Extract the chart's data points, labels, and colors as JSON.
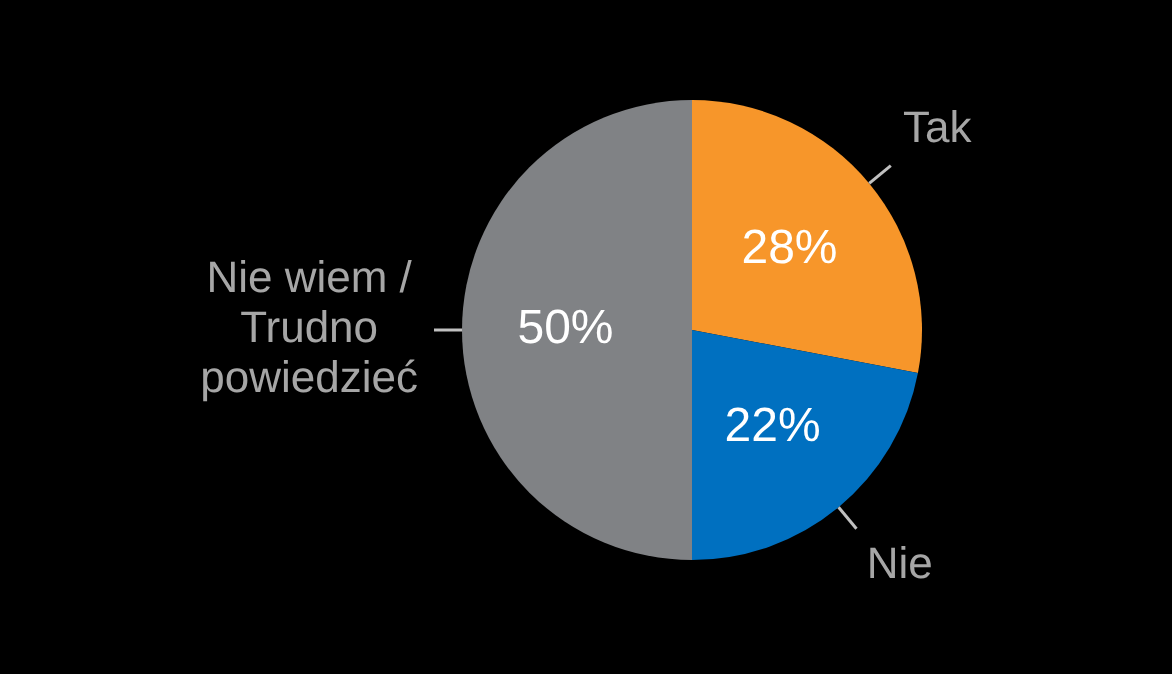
{
  "chart_data": {
    "type": "pie",
    "categories": [
      "Tak",
      "Nie",
      "Nie wiem / Trudno powiedzieć"
    ],
    "values": [
      28,
      22,
      50
    ],
    "colors": [
      "#f7962a",
      "#0070c0",
      "#808285"
    ],
    "value_labels": [
      "28%",
      "22%",
      "50%"
    ],
    "legend": false
  }
}
